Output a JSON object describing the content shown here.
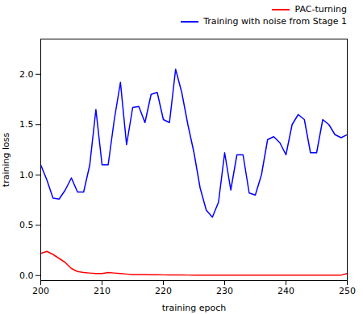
{
  "chart_data": {
    "type": "line",
    "xlabel": "training epoch",
    "ylabel": "training loss",
    "x": [
      200,
      201,
      202,
      203,
      204,
      205,
      206,
      207,
      208,
      209,
      210,
      211,
      212,
      213,
      214,
      215,
      216,
      217,
      218,
      219,
      220,
      221,
      222,
      223,
      224,
      225,
      226,
      227,
      228,
      229,
      230,
      231,
      232,
      233,
      234,
      235,
      236,
      237,
      238,
      239,
      240,
      241,
      242,
      243,
      244,
      245,
      246,
      247,
      248,
      249,
      250
    ],
    "series": [
      {
        "name": "PAC-turning",
        "color": "#ff0000",
        "values": [
          0.22,
          0.24,
          0.21,
          0.17,
          0.13,
          0.07,
          0.04,
          0.03,
          0.025,
          0.02,
          0.02,
          0.03,
          0.025,
          0.02,
          0.015,
          0.01,
          0.01,
          0.01,
          0.008,
          0.008,
          0.007,
          0.007,
          0.006,
          0.006,
          0.005,
          0.005,
          0.005,
          0.005,
          0.005,
          0.005,
          0.005,
          0.005,
          0.005,
          0.005,
          0.005,
          0.005,
          0.005,
          0.005,
          0.005,
          0.005,
          0.005,
          0.005,
          0.005,
          0.005,
          0.005,
          0.005,
          0.005,
          0.005,
          0.005,
          0.005,
          0.02
        ]
      },
      {
        "name": "Training with noise from Stage 1",
        "color": "#0000ff",
        "values": [
          1.1,
          0.95,
          0.77,
          0.76,
          0.85,
          0.97,
          0.83,
          0.83,
          1.1,
          1.65,
          1.1,
          1.1,
          1.55,
          1.92,
          1.3,
          1.67,
          1.68,
          1.52,
          1.8,
          1.82,
          1.55,
          1.52,
          2.05,
          1.82,
          1.5,
          1.22,
          0.87,
          0.65,
          0.58,
          0.73,
          1.22,
          0.85,
          1.2,
          1.2,
          0.82,
          0.8,
          1.0,
          1.35,
          1.38,
          1.32,
          1.2,
          1.5,
          1.6,
          1.55,
          1.22,
          1.22,
          1.55,
          1.5,
          1.4,
          1.37,
          1.4
        ]
      }
    ],
    "xlim": [
      200,
      250
    ],
    "ylim": [
      -0.05,
      2.35
    ],
    "xticks": [
      200,
      210,
      220,
      230,
      240,
      250
    ],
    "yticks": [
      {
        "value": 0,
        "label": "0.0"
      },
      0.5,
      {
        "value": 1,
        "label": "1.0"
      },
      1.5,
      {
        "value": 2,
        "label": "2.0"
      }
    ],
    "grid": false,
    "legend": "upper right"
  }
}
